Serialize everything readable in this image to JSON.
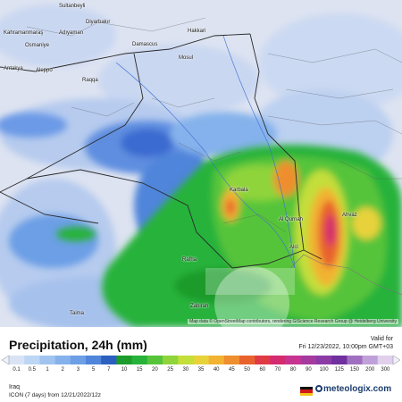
{
  "map": {
    "attribution": "Map data © OpenStreetMap contributors, rendering GIScience Research Group @ Heidelberg University",
    "cities": [
      {
        "name": "Sultanbeyli"
      },
      {
        "name": "Diyarbakır"
      },
      {
        "name": "Kahramanmaraş"
      },
      {
        "name": "Adıyaman"
      },
      {
        "name": "Osmaniye"
      },
      {
        "name": "Antakya"
      },
      {
        "name": "Aleppo"
      },
      {
        "name": "Damascus"
      },
      {
        "name": "Raqqa"
      },
      {
        "name": "Mosul"
      },
      {
        "name": "Hakkari"
      },
      {
        "name": "Karbala"
      },
      {
        "name": "Al Qurnah"
      },
      {
        "name": "Ahvaz"
      },
      {
        "name": "Rafha"
      },
      {
        "name": "Zabirah"
      },
      {
        "name": "Taima"
      },
      {
        "name": "Alcl"
      }
    ]
  },
  "header": {
    "title": "Precipitation, 24h (mm)",
    "valid_label": "Valid for",
    "valid_time": "Fri 12/23/2022, 10:00pm GMT+03"
  },
  "legend": {
    "ticks": [
      "0.1",
      "0.5",
      "1",
      "2",
      "3",
      "5",
      "7",
      "10",
      "15",
      "20",
      "25",
      "30",
      "35",
      "40",
      "45",
      "50",
      "60",
      "70",
      "80",
      "90",
      "100",
      "125",
      "150",
      "200",
      "300"
    ],
    "colors": [
      "#d8e4f5",
      "#bdd6f4",
      "#a0c4ef",
      "#85b2ec",
      "#6c9fe6",
      "#4f85da",
      "#2c5fbf",
      "#1d9b2b",
      "#27b23a",
      "#56c43a",
      "#8fd43a",
      "#c4de3a",
      "#e8d23a",
      "#f2b232",
      "#ee8e2e",
      "#e8622e",
      "#e03a44",
      "#d42a6e",
      "#c73390",
      "#a43aa0",
      "#8c3aa6",
      "#7030a0",
      "#a070c0",
      "#c0a0d8",
      "#e0d0ec"
    ]
  },
  "footer": {
    "region": "Iraq",
    "model": "ICON (7 days) from 12/21/2022/12z",
    "brand": "meteologix.com"
  }
}
